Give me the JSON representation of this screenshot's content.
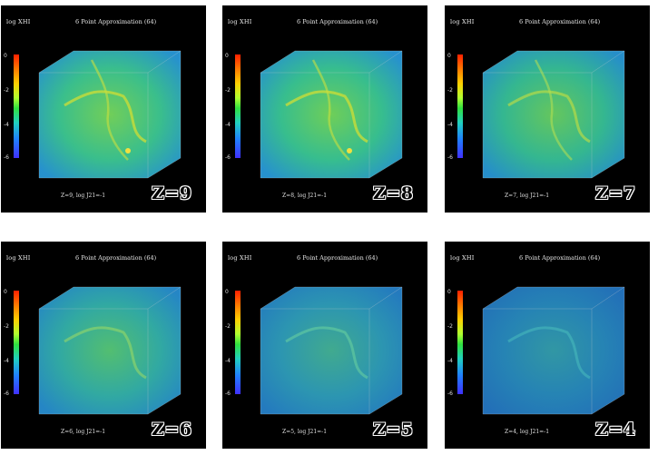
{
  "common": {
    "ylabel": "log XHI",
    "title": "6 Point Approximation (64)",
    "colorbar_ticks": [
      "0",
      "-2",
      "-4",
      "-6"
    ]
  },
  "panels": [
    {
      "caption": "Z=9, log J21=-1",
      "z_label": "Z=9"
    },
    {
      "caption": "Z=8, log J21=-1",
      "z_label": "Z=8"
    },
    {
      "caption": "Z=7, log J21=-1",
      "z_label": "Z=7"
    },
    {
      "caption": "Z=6, log J21=-1",
      "z_label": "Z=6"
    },
    {
      "caption": "Z=5, log J21=-1",
      "z_label": "Z=5"
    },
    {
      "caption": "Z=4, log J21=-1",
      "z_label": "Z=4"
    }
  ],
  "colors": {
    "background": "#000000",
    "cube_green": "#3fd890",
    "cube_blue": "#2a9ee0",
    "filament_yellow": "#d8e030"
  }
}
